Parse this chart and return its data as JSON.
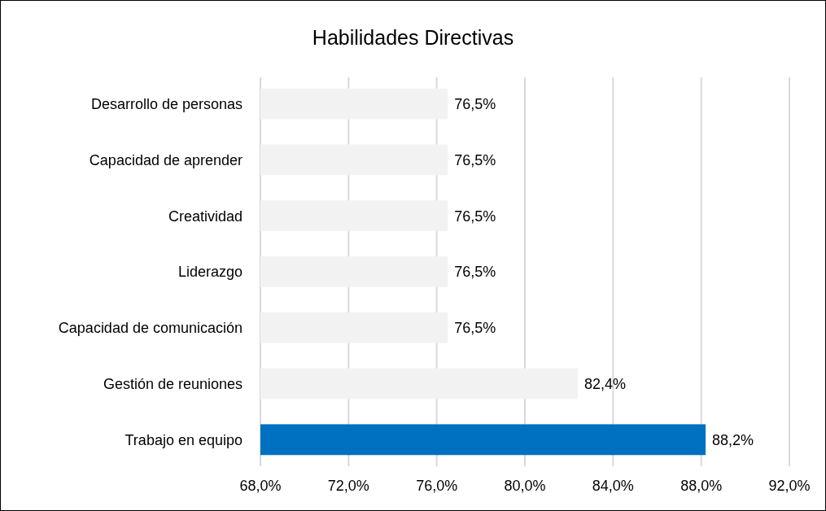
{
  "chart_data": {
    "type": "bar",
    "orientation": "horizontal",
    "title": "Habilidades Directivas",
    "categories": [
      "Desarrollo de personas",
      "Capacidad de aprender",
      "Creatividad",
      "Liderazgo",
      "Capacidad de comunicación",
      "Gestión de reuniones",
      "Trabajo en equipo"
    ],
    "values": [
      76.5,
      76.5,
      76.5,
      76.5,
      76.5,
      82.4,
      88.2
    ],
    "value_labels": [
      "76,5%",
      "76,5%",
      "76,5%",
      "76,5%",
      "76,5%",
      "82,4%",
      "88,2%"
    ],
    "colors": [
      "#f2f2f2",
      "#f2f2f2",
      "#f2f2f2",
      "#f2f2f2",
      "#f2f2f2",
      "#f2f2f2",
      "#0070c0"
    ],
    "xlim": [
      68,
      92
    ],
    "xticks": [
      {
        "value": 68,
        "label": "68,0%"
      },
      {
        "value": 72,
        "label": "72,0%"
      },
      {
        "value": 76,
        "label": "76,0%"
      },
      {
        "value": 80,
        "label": "80,0%"
      },
      {
        "value": 84,
        "label": "84,0%"
      },
      {
        "value": 88,
        "label": "88,0%"
      },
      {
        "value": 92,
        "label": "92,0%"
      }
    ],
    "grid": "x"
  }
}
